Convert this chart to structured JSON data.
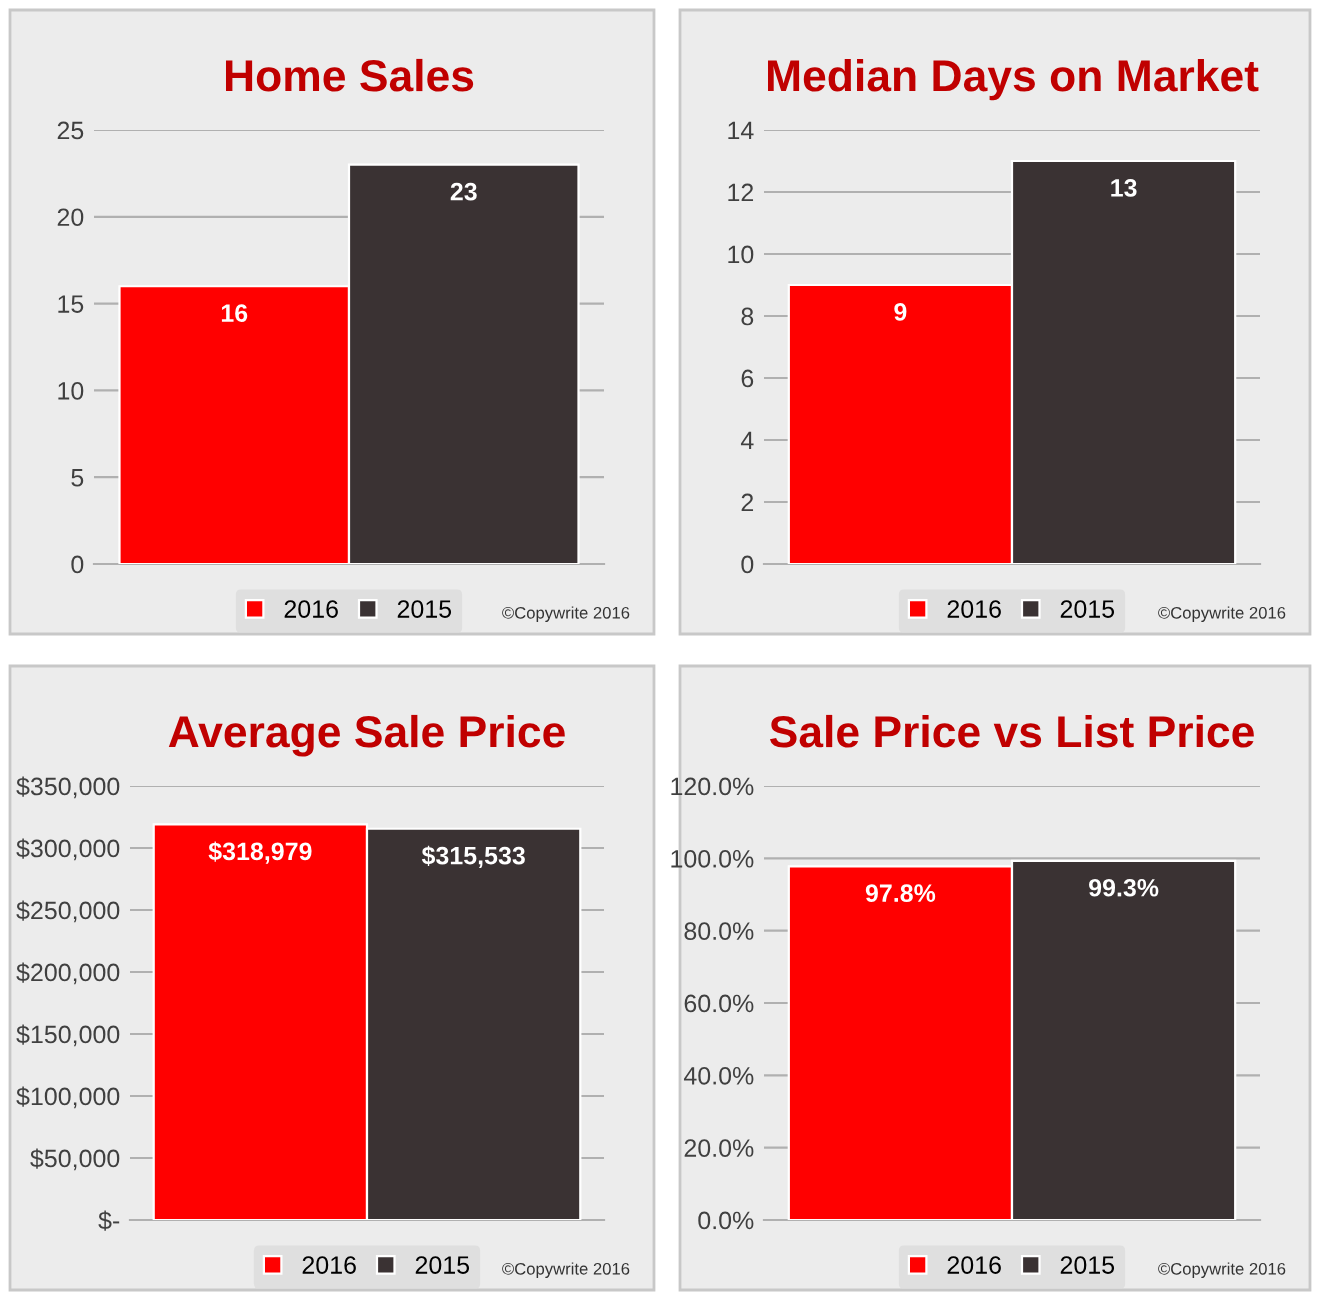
{
  "chart_data": [
    {
      "type": "bar",
      "title": "Home Sales",
      "categories": [
        null
      ],
      "series": [
        {
          "name": "2016",
          "color": "#ff0000",
          "values": [
            16
          ]
        },
        {
          "name": "2015",
          "color": "#3a3233",
          "values": [
            23
          ]
        }
      ],
      "ylim": [
        0,
        25
      ],
      "yticks": [
        0,
        5,
        10,
        15,
        20,
        25
      ],
      "grid": "y",
      "legend": "bottom",
      "data_labels": true,
      "annotations": [
        "©Copywrite 2016"
      ]
    },
    {
      "type": "bar",
      "title": "Median Days on Market",
      "categories": [
        null
      ],
      "series": [
        {
          "name": "2016",
          "color": "#ff0000",
          "values": [
            9
          ]
        },
        {
          "name": "2015",
          "color": "#3a3233",
          "values": [
            13
          ]
        }
      ],
      "ylim": [
        0,
        14
      ],
      "yticks": [
        0,
        2,
        4,
        6,
        8,
        10,
        12,
        14
      ],
      "grid": "y",
      "legend": "bottom",
      "data_labels": true,
      "annotations": [
        "©Copywrite 2016"
      ]
    },
    {
      "type": "bar",
      "title": "Average Sale Price",
      "categories": [
        null
      ],
      "series": [
        {
          "name": "2016",
          "color": "#ff0000",
          "values": [
            318979
          ],
          "value_labels": [
            "$318,979"
          ]
        },
        {
          "name": "2015",
          "color": "#3a3233",
          "values": [
            315533
          ],
          "value_labels": [
            "$315,533"
          ]
        }
      ],
      "ylim": [
        0,
        350000
      ],
      "yticks": [
        {
          "value": 0,
          "label": "$-"
        },
        {
          "value": 50000,
          "label": "$50,000"
        },
        {
          "value": 100000,
          "label": "$100,000"
        },
        {
          "value": 150000,
          "label": "$150,000"
        },
        {
          "value": 200000,
          "label": "$200,000"
        },
        {
          "value": 250000,
          "label": "$250,000"
        },
        {
          "value": 300000,
          "label": "$300,000"
        },
        {
          "value": 350000,
          "label": "$350,000"
        }
      ],
      "grid": "y",
      "legend": "bottom",
      "annotations": [
        "©Copywrite 2016"
      ]
    },
    {
      "type": "bar",
      "title": "Sale Price vs List Price",
      "categories": [
        null
      ],
      "series": [
        {
          "name": "2016",
          "color": "#ff0000",
          "values": [
            97.8
          ],
          "value_labels": [
            "97.8%"
          ]
        },
        {
          "name": "2015",
          "color": "#3a3233",
          "values": [
            99.3
          ],
          "value_labels": [
            "99.3%"
          ]
        }
      ],
      "ylim": [
        0,
        120
      ],
      "yticks": [
        {
          "value": 0,
          "label": "0.0%"
        },
        {
          "value": 20,
          "label": "20.0%"
        },
        {
          "value": 40,
          "label": "40.0%"
        },
        {
          "value": 60,
          "label": "60.0%"
        },
        {
          "value": 80,
          "label": "80.0%"
        },
        {
          "value": 100,
          "label": "100.0%"
        },
        {
          "value": 120,
          "label": "120.0%"
        }
      ],
      "grid": "y",
      "legend": "bottom",
      "annotations": [
        "©Copywrite 2016"
      ]
    }
  ]
}
